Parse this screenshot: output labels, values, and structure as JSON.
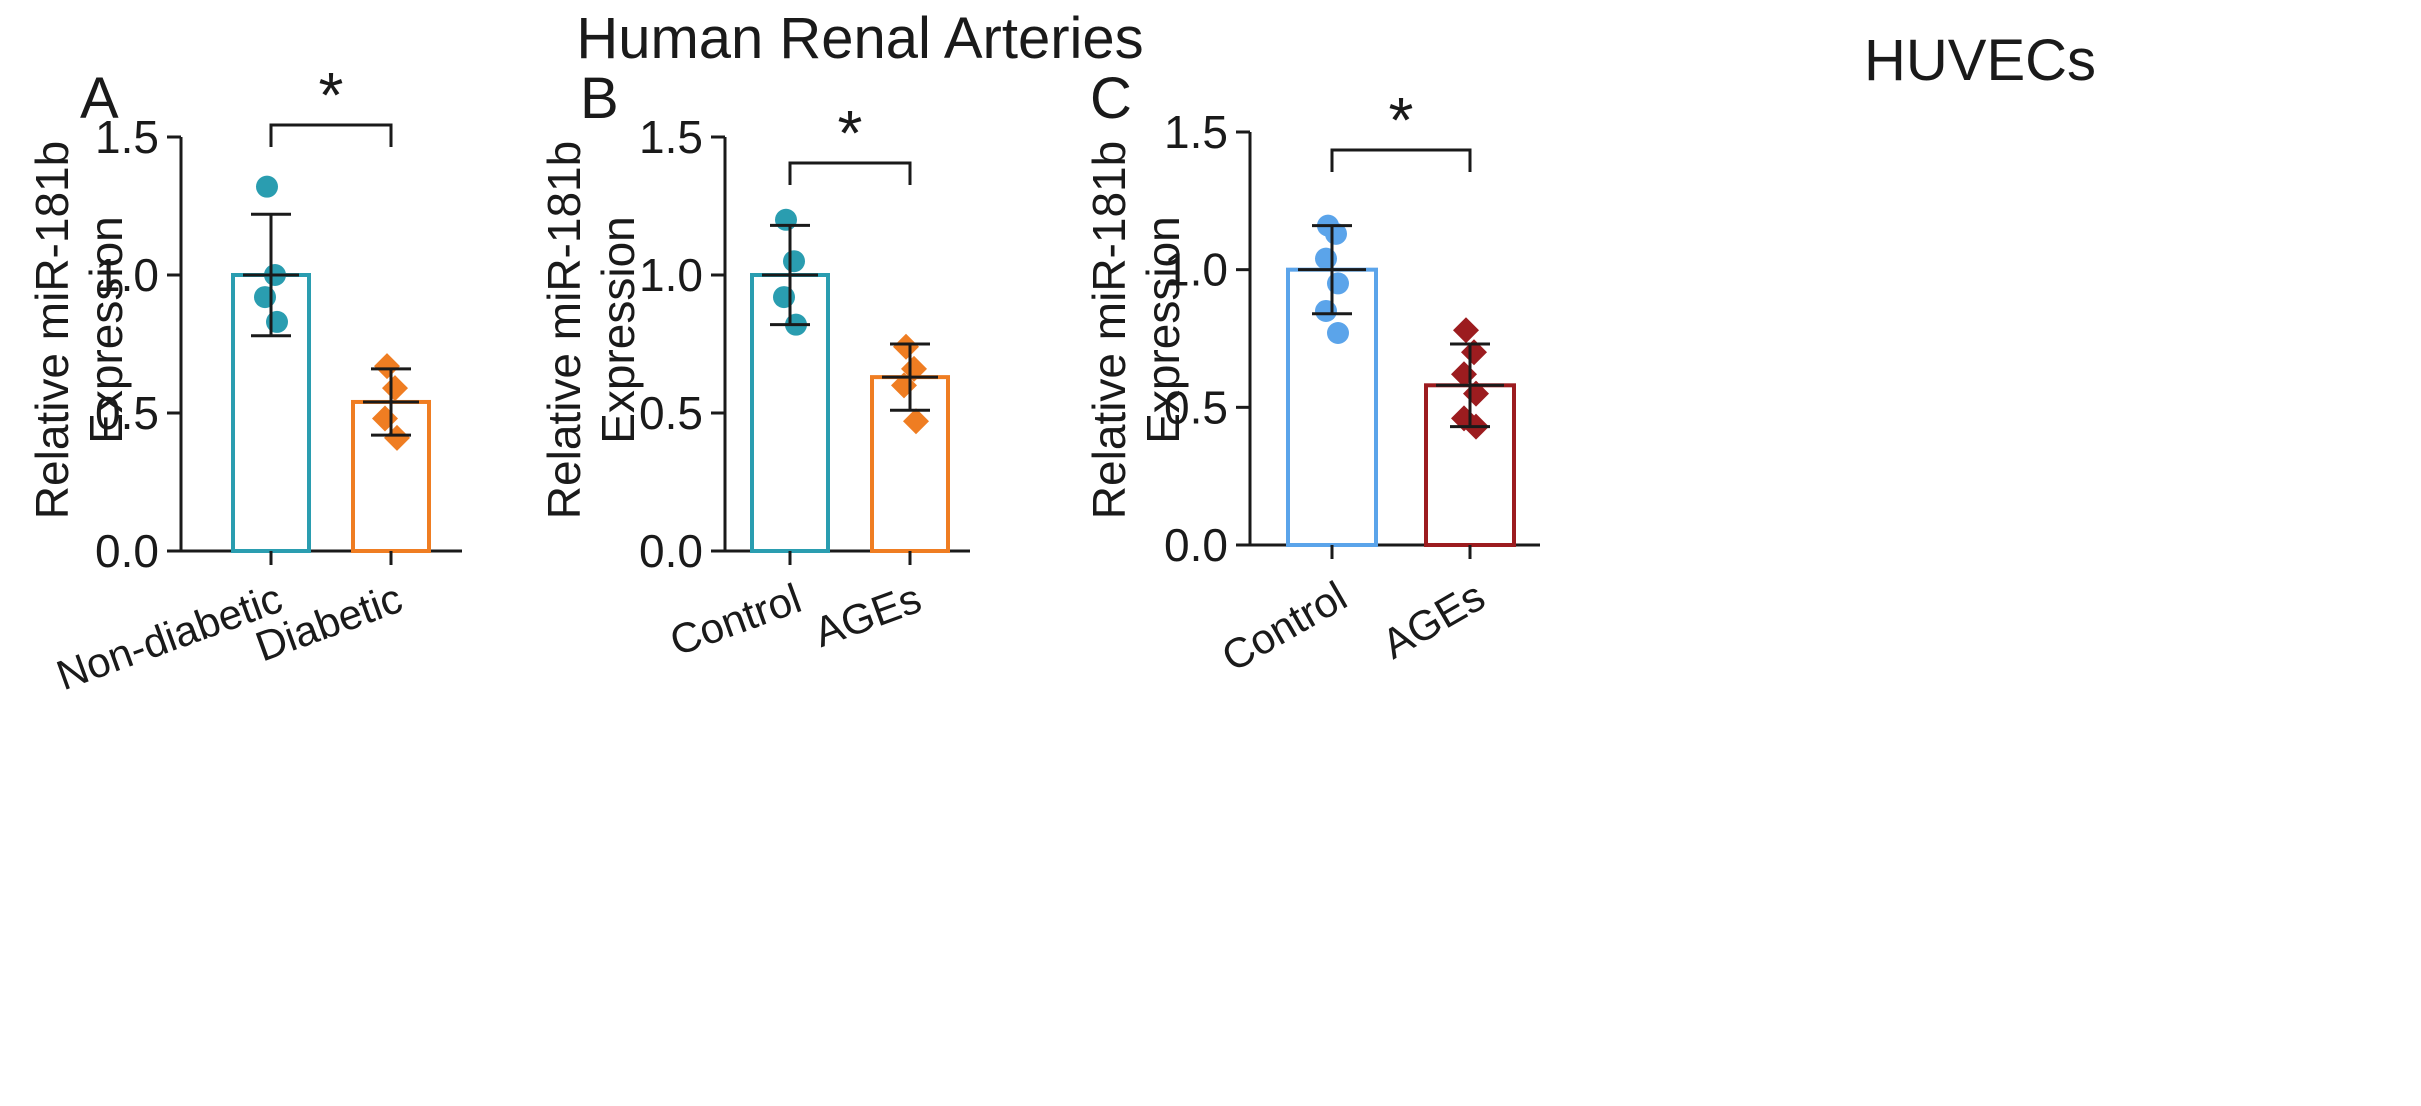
{
  "figure": {
    "group_titles": [
      {
        "key": "renal",
        "text": "Human Renal Arteries"
      },
      {
        "key": "huvec",
        "text": "HUVECs"
      }
    ]
  },
  "colors": {
    "teal": "#2a9db0",
    "orange": "#ef7d22",
    "light_blue": "#5ba4ea",
    "dark_red": "#9c1c1f",
    "axis": "#1a1a1a"
  },
  "chart_data": [
    {
      "panel": "A",
      "type": "bar",
      "title": "Human Renal Arteries",
      "xlabel": "",
      "ylabel": [
        "Relative miR-181b",
        "Expression"
      ],
      "ylim": [
        0,
        1.5
      ],
      "yticks": [
        "0.0",
        "0.5",
        "1.0",
        "1.5"
      ],
      "categories": [
        "Non-diabetic",
        "Diabetic"
      ],
      "values": [
        1.0,
        0.54
      ],
      "error": [
        0.22,
        0.12
      ],
      "points": [
        [
          1.32,
          1.0,
          0.92,
          0.83
        ],
        [
          0.67,
          0.59,
          0.48,
          0.41
        ]
      ],
      "markers": [
        "circle",
        "diamond"
      ],
      "colors": [
        "#2a9db0",
        "#ef7d22"
      ],
      "significance": "*",
      "tick_rotation": -20
    },
    {
      "panel": "B",
      "type": "bar",
      "title": "Human Renal Arteries",
      "xlabel": "",
      "ylabel": [
        "Relative miR-181b",
        "Expression"
      ],
      "ylim": [
        0,
        1.5
      ],
      "yticks": [
        "0.0",
        "0.5",
        "1.0",
        "1.5"
      ],
      "categories": [
        "Control",
        "AGEs"
      ],
      "values": [
        1.0,
        0.63
      ],
      "error": [
        0.18,
        0.12
      ],
      "points": [
        [
          1.2,
          1.05,
          0.92,
          0.82
        ],
        [
          0.74,
          0.66,
          0.6,
          0.47
        ]
      ],
      "markers": [
        "circle",
        "diamond"
      ],
      "colors": [
        "#2a9db0",
        "#ef7d22"
      ],
      "significance": "*",
      "tick_rotation": -20
    },
    {
      "panel": "C",
      "type": "bar",
      "title": "HUVECs",
      "xlabel": "",
      "ylabel": [
        "Relative miR-181b",
        "Expression"
      ],
      "ylim": [
        0,
        1.5
      ],
      "yticks": [
        "0.0",
        "0.5",
        "1.0",
        "1.5"
      ],
      "categories": [
        "Control",
        "AGEs"
      ],
      "values": [
        1.0,
        0.58
      ],
      "error": [
        0.16,
        0.15
      ],
      "points": [
        [
          1.16,
          1.13,
          1.04,
          0.95,
          0.85,
          0.77
        ],
        [
          0.78,
          0.7,
          0.62,
          0.55,
          0.46,
          0.43
        ]
      ],
      "markers": [
        "circle",
        "diamond"
      ],
      "colors": [
        "#5ba4ea",
        "#9c1c1f"
      ],
      "significance": "*",
      "tick_rotation": -30
    }
  ]
}
